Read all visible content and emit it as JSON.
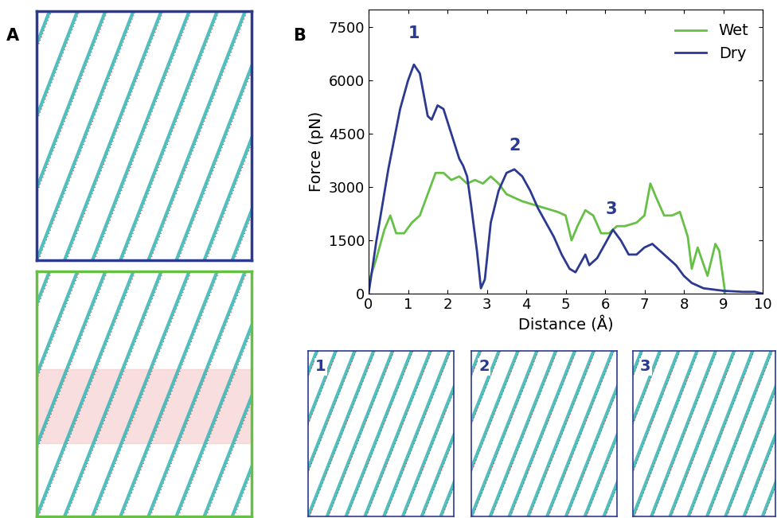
{
  "panel_labels": [
    "A",
    "B"
  ],
  "snapshots": [
    "1",
    "2",
    "3"
  ],
  "chart_data": {
    "type": "line",
    "x_label": "Distance (Å)",
    "y_label": "Force (pN)",
    "xlim": [
      0,
      10
    ],
    "ylim": [
      0,
      8000
    ],
    "xticks": [
      0,
      1,
      2,
      3,
      4,
      5,
      6,
      7,
      8,
      9,
      10
    ],
    "yticks": [
      0,
      1500,
      3000,
      4500,
      6000,
      7500
    ],
    "legend": "upper right",
    "grid": false,
    "series": [
      {
        "name": "Wet",
        "color": "#66c046",
        "x": [
          0,
          0.2,
          0.4,
          0.55,
          0.7,
          0.9,
          1.1,
          1.3,
          1.5,
          1.7,
          1.9,
          2.1,
          2.3,
          2.5,
          2.7,
          2.9,
          3.1,
          3.3,
          3.5,
          3.7,
          3.9,
          4.2,
          4.5,
          4.8,
          5.0,
          5.15,
          5.3,
          5.5,
          5.7,
          5.9,
          6.1,
          6.3,
          6.5,
          6.8,
          7.0,
          7.15,
          7.3,
          7.5,
          7.7,
          7.9,
          8.1,
          8.2,
          8.35,
          8.6,
          8.8,
          8.9,
          9.05
        ],
        "values": [
          300,
          1000,
          1800,
          2200,
          1700,
          1700,
          2000,
          2200,
          2800,
          3400,
          3400,
          3200,
          3300,
          3100,
          3200,
          3100,
          3300,
          3100,
          2800,
          2700,
          2600,
          2500,
          2400,
          2300,
          2200,
          1500,
          1900,
          2350,
          2200,
          1700,
          1700,
          1900,
          1900,
          2000,
          2200,
          3100,
          2700,
          2200,
          2200,
          2300,
          1600,
          700,
          1300,
          500,
          1400,
          1200,
          0
        ]
      },
      {
        "name": "Dry",
        "color": "#2b3990",
        "x": [
          0,
          0.2,
          0.5,
          0.8,
          1.0,
          1.15,
          1.3,
          1.5,
          1.6,
          1.75,
          1.9,
          2.1,
          2.3,
          2.4,
          2.5,
          2.6,
          2.75,
          2.85,
          2.95,
          3.1,
          3.3,
          3.5,
          3.7,
          3.9,
          4.1,
          4.3,
          4.5,
          4.7,
          4.9,
          5.1,
          5.25,
          5.4,
          5.5,
          5.6,
          5.8,
          6.0,
          6.2,
          6.4,
          6.6,
          6.8,
          7.0,
          7.2,
          7.4,
          7.6,
          7.8,
          8.0,
          8.2,
          8.5,
          9.0,
          9.5,
          9.8,
          10
        ],
        "values": [
          0,
          1500,
          3500,
          5200,
          6000,
          6450,
          6200,
          5000,
          4900,
          5300,
          5200,
          4500,
          3800,
          3600,
          3300,
          2500,
          1200,
          150,
          400,
          2000,
          2900,
          3400,
          3500,
          3300,
          2900,
          2400,
          2000,
          1600,
          1100,
          700,
          600,
          900,
          1100,
          800,
          1000,
          1400,
          1800,
          1500,
          1100,
          1100,
          1300,
          1400,
          1200,
          1000,
          800,
          500,
          300,
          150,
          80,
          50,
          50,
          0
        ]
      }
    ],
    "annotations": [
      {
        "text": "1",
        "x": 1.15,
        "y": 7100
      },
      {
        "text": "2",
        "x": 3.7,
        "y": 3950
      },
      {
        "text": "3",
        "x": 6.15,
        "y": 2150
      }
    ]
  }
}
